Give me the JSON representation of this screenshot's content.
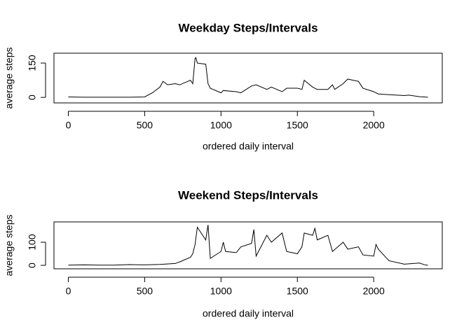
{
  "chart_data": [
    {
      "type": "line",
      "title": "Weekday Steps/Intervals",
      "xlabel": "ordered daily interval",
      "ylabel": "average steps",
      "color": "#000000",
      "x": [
        0,
        100,
        200,
        300,
        400,
        500,
        550,
        600,
        620,
        650,
        700,
        730,
        800,
        815,
        830,
        835,
        845,
        900,
        915,
        930,
        1000,
        1015,
        1100,
        1130,
        1200,
        1230,
        1300,
        1330,
        1400,
        1430,
        1500,
        1530,
        1545,
        1600,
        1630,
        1700,
        1730,
        1745,
        1800,
        1830,
        1900,
        1930,
        2000,
        2030,
        2100,
        2200,
        2230,
        2300,
        2355
      ],
      "values": [
        2,
        1,
        1,
        1,
        1,
        2,
        20,
        45,
        70,
        55,
        60,
        55,
        75,
        60,
        170,
        174,
        150,
        145,
        60,
        40,
        20,
        30,
        25,
        20,
        50,
        55,
        35,
        45,
        25,
        40,
        40,
        35,
        75,
        45,
        35,
        35,
        55,
        35,
        60,
        80,
        70,
        40,
        25,
        15,
        12,
        8,
        10,
        3,
        1
      ],
      "xlim": [
        -94,
        2449
      ],
      "ylim": [
        -24,
        193
      ],
      "xticks": [
        0,
        500,
        1000,
        1500,
        2000
      ],
      "yticks": [
        0,
        150
      ]
    },
    {
      "type": "line",
      "title": "Weekend Steps/Intervals",
      "xlabel": "ordered daily interval",
      "ylabel": "average steps",
      "color": "#000000",
      "x": [
        0,
        100,
        200,
        300,
        400,
        500,
        600,
        700,
        730,
        800,
        815,
        830,
        845,
        900,
        915,
        930,
        1000,
        1015,
        1030,
        1100,
        1130,
        1200,
        1215,
        1230,
        1300,
        1330,
        1400,
        1430,
        1500,
        1530,
        1545,
        1600,
        1615,
        1630,
        1700,
        1730,
        1800,
        1830,
        1900,
        1930,
        2000,
        2015,
        2030,
        2100,
        2200,
        2300,
        2330,
        2355
      ],
      "values": [
        1,
        2,
        1,
        1,
        3,
        2,
        4,
        8,
        15,
        35,
        50,
        90,
        165,
        110,
        175,
        30,
        60,
        100,
        60,
        55,
        80,
        95,
        155,
        40,
        130,
        100,
        140,
        60,
        50,
        80,
        140,
        130,
        160,
        110,
        130,
        60,
        100,
        70,
        80,
        45,
        40,
        90,
        70,
        20,
        5,
        10,
        3,
        0
      ],
      "xlim": [
        -94,
        2449
      ],
      "ylim": [
        -15,
        188
      ],
      "xticks": [
        0,
        500,
        1000,
        1500,
        2000
      ],
      "yticks": [
        0,
        100
      ]
    }
  ]
}
